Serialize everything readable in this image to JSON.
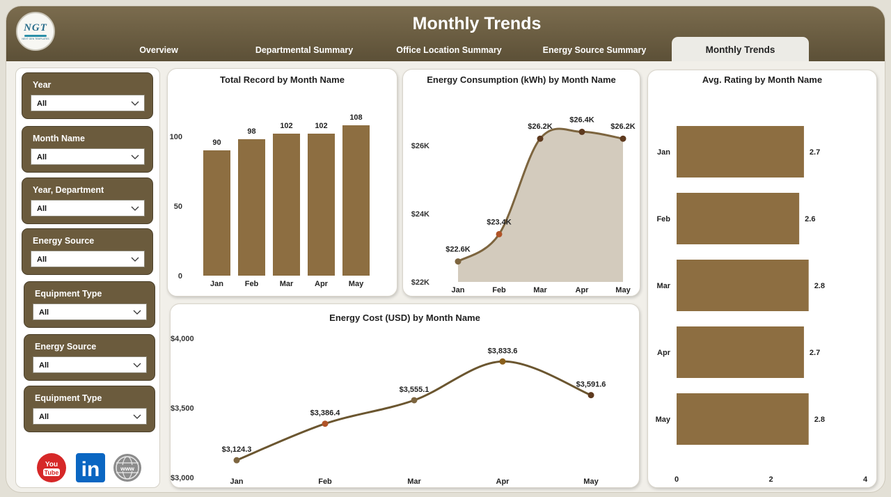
{
  "header": {
    "title": "Monthly Trends",
    "logo_text": "NGT",
    "logo_subtext": "NEXT GEN TEMPLATES",
    "tabs": [
      {
        "label": "Overview",
        "active": false
      },
      {
        "label": "Departmental Summary",
        "active": false
      },
      {
        "label": "Office Location Summary",
        "active": false
      },
      {
        "label": "Energy Source Summary",
        "active": false
      },
      {
        "label": "Monthly Trends",
        "active": true
      }
    ]
  },
  "sidebar": {
    "filters": [
      {
        "label": "Year",
        "value": "All"
      },
      {
        "label": "Month Name",
        "value": "All"
      },
      {
        "label": "Year, Department",
        "value": "All"
      },
      {
        "label": "Energy Source",
        "value": "All"
      },
      {
        "label": "Equipment Type",
        "value": "All"
      },
      {
        "label": "Energy Source",
        "value": "All"
      },
      {
        "label": "Equipment Type",
        "value": "All"
      }
    ],
    "social": [
      {
        "icon": "youtube-icon",
        "line1": "You",
        "line2": "Tube",
        "color": "#d62828"
      },
      {
        "icon": "linkedin-icon",
        "text": "in",
        "color": "#0a66c2"
      },
      {
        "icon": "globe-icon",
        "text": "www",
        "color": "#8c8c8c"
      }
    ]
  },
  "colors": {
    "bar": "#8d6e41",
    "line": "#7d653f",
    "area": "#d3cbbd",
    "point_dark": "#5e3a1f",
    "point_accent": "#b05428",
    "cost_line": "#6b5630"
  },
  "chart_data": [
    {
      "type": "bar",
      "title": "Total Record by Month Name",
      "categories": [
        "Jan",
        "Feb",
        "Mar",
        "Apr",
        "May"
      ],
      "values": [
        90,
        98,
        102,
        102,
        108
      ],
      "data_labels": [
        "90",
        "98",
        "102",
        "102",
        "108"
      ],
      "yticks": [
        "0",
        "50",
        "100"
      ],
      "ylim": [
        0,
        120
      ]
    },
    {
      "type": "area",
      "title": "Energy Consumption (kWh) by Month Name",
      "categories": [
        "Jan",
        "Feb",
        "Mar",
        "Apr",
        "May"
      ],
      "values": [
        22600,
        23400,
        26200,
        26400,
        26200
      ],
      "data_labels": [
        "$22.6K",
        "$23.4K",
        "$26.2K",
        "$26.4K",
        "$26.2K"
      ],
      "yticks": [
        "$22K",
        "$24K",
        "$26K"
      ],
      "ylim": [
        22000,
        27000
      ]
    },
    {
      "type": "bar",
      "orientation": "horizontal",
      "title": "Avg. Rating by Month Name",
      "categories": [
        "Jan",
        "Feb",
        "Mar",
        "Apr",
        "May"
      ],
      "values": [
        2.7,
        2.6,
        2.8,
        2.7,
        2.8
      ],
      "data_labels": [
        "2.7",
        "2.6",
        "2.8",
        "2.7",
        "2.8"
      ],
      "xticks": [
        "0",
        "2",
        "4"
      ],
      "xlim": [
        0,
        4
      ]
    },
    {
      "type": "line",
      "title": "Energy Cost (USD) by Month Name",
      "categories": [
        "Jan",
        "Feb",
        "Mar",
        "Apr",
        "May"
      ],
      "values": [
        3124.3,
        3386.4,
        3555.1,
        3833.6,
        3591.6
      ],
      "data_labels": [
        "$3,124.3",
        "$3,386.4",
        "$3,555.1",
        "$3,833.6",
        "$3,591.6"
      ],
      "yticks": [
        "$3,000",
        "$3,500",
        "$4,000"
      ],
      "ylim": [
        3000,
        4000
      ]
    }
  ]
}
